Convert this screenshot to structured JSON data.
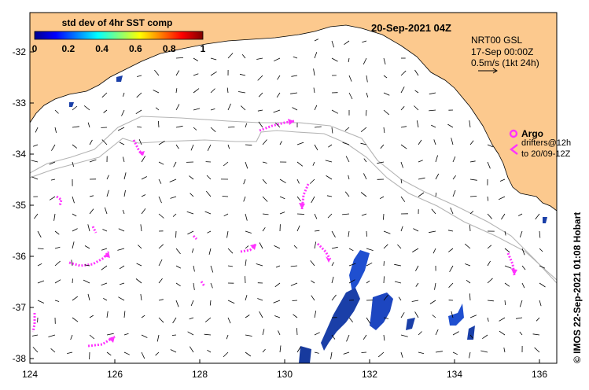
{
  "map": {
    "title": "20-Sep-2021 04Z",
    "colorbar": {
      "title": "std dev of 4hr SST comp",
      "ticks": [
        "0",
        "0.2",
        "0.4",
        "0.6",
        "0.8",
        "1"
      ]
    },
    "info": {
      "line1": "NRT00 GSL",
      "line2": "17-Sep 00:00Z",
      "line3": "0.5m/s (1kt 24h)"
    },
    "argo_legend": {
      "argo_label": "Argo",
      "drifters_line1": "drifters@12h",
      "drifters_line2": "to 20/09-12Z"
    },
    "credit": "© IMOS 22-Sep-2021 01:08 Hobart",
    "x_ticks": [
      "124",
      "126",
      "128",
      "130",
      "132",
      "134",
      "136"
    ],
    "y_ticks": [
      "-32",
      "-33",
      "-34",
      "-35",
      "-36",
      "-37",
      "-38"
    ],
    "colors": {
      "land": "#fcc98e",
      "drifter": "#ff33ff",
      "contour": "#b4b4b4",
      "sst_patch": "#1a3fa8"
    },
    "icons": {
      "argo": "magenta-circle-icon",
      "drifter": "magenta-arrowhead-icon",
      "scale": "arrow-right-icon"
    }
  }
}
